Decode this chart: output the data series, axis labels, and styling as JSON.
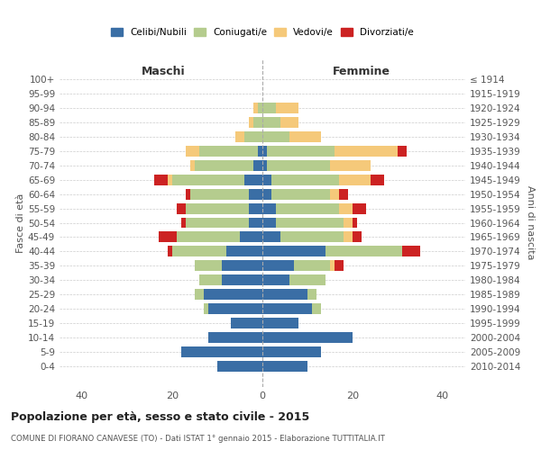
{
  "age_groups": [
    "0-4",
    "5-9",
    "10-14",
    "15-19",
    "20-24",
    "25-29",
    "30-34",
    "35-39",
    "40-44",
    "45-49",
    "50-54",
    "55-59",
    "60-64",
    "65-69",
    "70-74",
    "75-79",
    "80-84",
    "85-89",
    "90-94",
    "95-99",
    "100+"
  ],
  "birth_years": [
    "2010-2014",
    "2005-2009",
    "2000-2004",
    "1995-1999",
    "1990-1994",
    "1985-1989",
    "1980-1984",
    "1975-1979",
    "1970-1974",
    "1965-1969",
    "1960-1964",
    "1955-1959",
    "1950-1954",
    "1945-1949",
    "1940-1944",
    "1935-1939",
    "1930-1934",
    "1925-1929",
    "1920-1924",
    "1915-1919",
    "≤ 1914"
  ],
  "colors": {
    "celibi": "#3a6ea5",
    "coniugati": "#b5cc8e",
    "vedovi": "#f5c97a",
    "divorziati": "#cc2222"
  },
  "males": {
    "celibi": [
      10,
      18,
      12,
      7,
      12,
      13,
      9,
      9,
      8,
      5,
      3,
      3,
      3,
      4,
      2,
      1,
      0,
      0,
      0,
      0,
      0
    ],
    "coniugati": [
      0,
      0,
      0,
      0,
      1,
      2,
      5,
      6,
      12,
      14,
      14,
      14,
      13,
      16,
      13,
      13,
      4,
      2,
      1,
      0,
      0
    ],
    "vedovi": [
      0,
      0,
      0,
      0,
      0,
      0,
      0,
      0,
      0,
      0,
      0,
      0,
      0,
      1,
      1,
      3,
      2,
      1,
      1,
      0,
      0
    ],
    "divorziati": [
      0,
      0,
      0,
      0,
      0,
      0,
      0,
      0,
      1,
      4,
      1,
      2,
      1,
      3,
      0,
      0,
      0,
      0,
      0,
      0,
      0
    ]
  },
  "females": {
    "celibi": [
      10,
      13,
      20,
      8,
      11,
      10,
      6,
      7,
      14,
      4,
      3,
      3,
      2,
      2,
      1,
      1,
      0,
      0,
      0,
      0,
      0
    ],
    "coniugati": [
      0,
      0,
      0,
      0,
      2,
      2,
      8,
      8,
      17,
      14,
      15,
      14,
      13,
      15,
      14,
      15,
      6,
      4,
      3,
      0,
      0
    ],
    "vedovi": [
      0,
      0,
      0,
      0,
      0,
      0,
      0,
      1,
      0,
      2,
      2,
      3,
      2,
      7,
      9,
      14,
      7,
      4,
      5,
      0,
      0
    ],
    "divorziati": [
      0,
      0,
      0,
      0,
      0,
      0,
      0,
      2,
      4,
      2,
      1,
      3,
      2,
      3,
      0,
      2,
      0,
      0,
      0,
      0,
      0
    ]
  },
  "title": "Popolazione per età, sesso e stato civile - 2015",
  "subtitle": "COMUNE DI FIORANO CANAVESE (TO) - Dati ISTAT 1° gennaio 2015 - Elaborazione TUTTITALIA.IT",
  "xlabel_left": "Maschi",
  "xlabel_right": "Femmine",
  "ylabel_left": "Fasce di età",
  "ylabel_right": "Anni di nascita",
  "xlim": 45,
  "xticks": [
    -40,
    -20,
    0,
    20,
    40
  ],
  "legend_labels": [
    "Celibi/Nubili",
    "Coniugati/e",
    "Vedovi/e",
    "Divorziati/e"
  ],
  "background_color": "#ffffff",
  "grid_color": "#cccccc"
}
